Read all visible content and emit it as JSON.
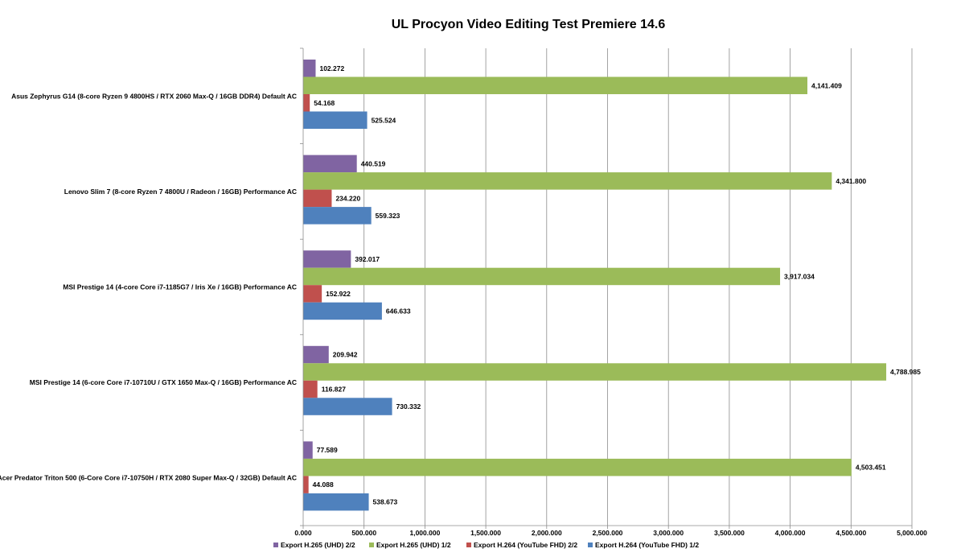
{
  "chart_data": {
    "type": "bar",
    "orientation": "horizontal",
    "title": "UL Procyon Video Editing Test Premiere 14.6",
    "xlabel": "",
    "ylabel": "",
    "xlim": [
      0,
      5000
    ],
    "x_ticks": [
      "0.000",
      "500.000",
      "1,000.000",
      "1,500.000",
      "2,000.000",
      "2,500.000",
      "3,000.000",
      "3,500.000",
      "4,000.000",
      "4,500.000",
      "5,000.000"
    ],
    "grid": true,
    "legend_position": "bottom",
    "categories": [
      "Asus Zephyrus G14 (8-core Ryzen 9 4800HS / RTX 2060 Max-Q / 16GB DDR4) Default AC",
      "Lenovo Slim 7 (8-core Ryzen 7 4800U / Radeon / 16GB) Performance AC",
      "MSI Prestige 14 (4-core Core i7-1185G7 / Iris Xe / 16GB) Performance AC",
      "MSI Prestige 14 (6-core Core i7-10710U / GTX 1650 Max-Q / 16GB) Performance AC",
      "Acer Predator Triton 500 (6-Core Core i7-10750H / RTX 2080 Super Max-Q / 32GB) Default AC"
    ],
    "series": [
      {
        "name": "Export H.265 (UHD) 2/2",
        "color": "#8064a2",
        "values": [
          102.272,
          440.519,
          392.017,
          209.942,
          77.589
        ],
        "labels": [
          "102.272",
          "440.519",
          "392.017",
          "209.942",
          "77.589"
        ]
      },
      {
        "name": "Export H.265 (UHD) 1/2",
        "color": "#9bbb59",
        "values": [
          4141.409,
          4341.8,
          3917.034,
          4788.985,
          4503.451
        ],
        "labels": [
          "4,141.409",
          "4,341.800",
          "3,917.034",
          "4,788.985",
          "4,503.451"
        ]
      },
      {
        "name": "Export H.264 (YouTube FHD) 2/2",
        "color": "#c0504d",
        "values": [
          54.168,
          234.22,
          152.922,
          116.827,
          44.088
        ],
        "labels": [
          "54.168",
          "234.220",
          "152.922",
          "116.827",
          "44.088"
        ]
      },
      {
        "name": "Export H.264 (YouTube FHD) 1/2",
        "color": "#4f81bd",
        "values": [
          525.524,
          559.323,
          646.633,
          730.332,
          538.673
        ],
        "labels": [
          "525.524",
          "559.323",
          "646.633",
          "730.332",
          "538.673"
        ]
      }
    ]
  }
}
